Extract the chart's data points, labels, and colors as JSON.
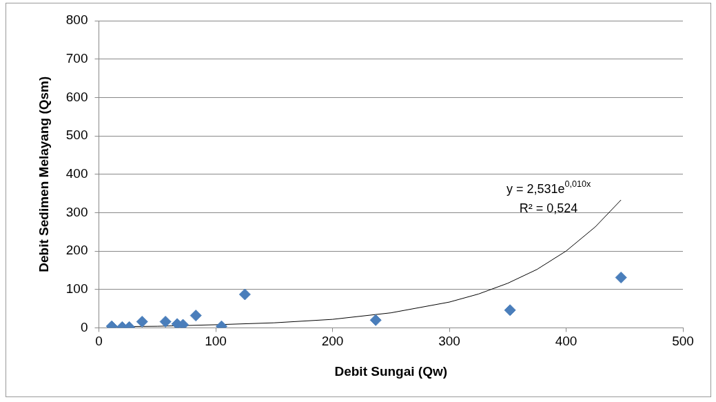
{
  "chart_data": {
    "type": "scatter",
    "xlabel": "Debit Sungai (Qw)",
    "ylabel": "Debit Sedimen Melayang (Qsm)",
    "xlim": [
      0,
      500
    ],
    "xticks": [
      0,
      100,
      200,
      300,
      400,
      500
    ],
    "ylim": [
      0,
      800
    ],
    "yticks": [
      0,
      100,
      200,
      300,
      400,
      500,
      600,
      700,
      800
    ],
    "grid": "y",
    "marker": "diamond",
    "series": [
      {
        "type": "scatter",
        "color": "#4a7ebb",
        "x": [
          11,
          20,
          26,
          37,
          57,
          67,
          72,
          83,
          105,
          125,
          237,
          352,
          447
        ],
        "values": [
          4,
          2,
          2,
          16,
          16,
          10,
          8,
          32,
          4,
          87,
          20,
          46,
          131
        ]
      },
      {
        "type": "line",
        "color": "#000000",
        "marker": "none",
        "x": [
          11,
          50,
          100,
          150,
          200,
          250,
          300,
          325,
          350,
          375,
          400,
          425,
          447
        ],
        "values": [
          3,
          4,
          8,
          13,
          22,
          39,
          67,
          88,
          116,
          152,
          200,
          263,
          333
        ]
      }
    ],
    "annotations": [
      "y = 2,531e$^{0,010x}$",
      "R² = 0,524"
    ]
  }
}
